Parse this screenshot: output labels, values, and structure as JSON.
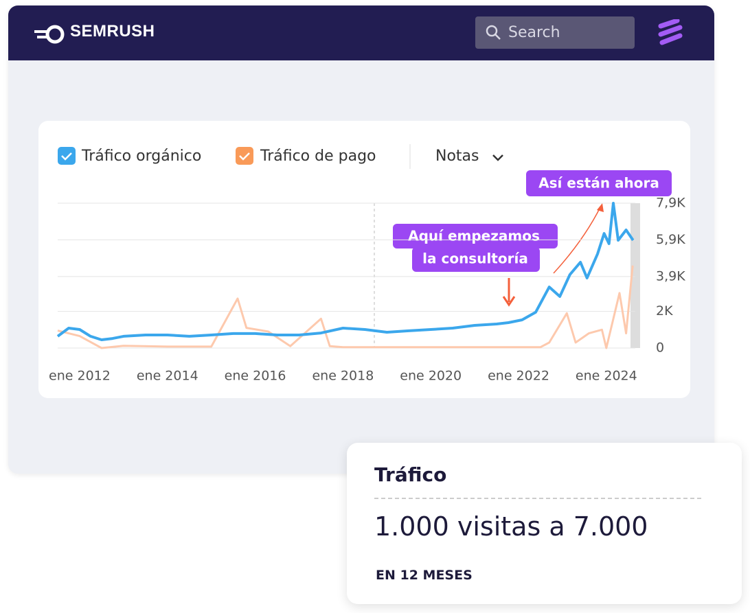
{
  "header": {
    "brand": "SEMRUSH",
    "search": "Search"
  },
  "chart_data": {
    "type": "line",
    "legend": [
      "Tráfico orgánico",
      "Tráfico de pago"
    ],
    "notes": "Notas",
    "annotations": [
      "Así están ahora",
      "Aquí empezamos",
      "la consultoría"
    ],
    "xlim": [
      2011.5,
      2024.66
    ],
    "xticks": [
      {
        "value": 2012,
        "label": "ene 2012"
      },
      {
        "value": 2014,
        "label": "ene 2014"
      },
      {
        "value": 2016,
        "label": "ene 2016"
      },
      {
        "value": 2018,
        "label": "ene 2018"
      },
      {
        "value": 2020,
        "label": "ene 2020"
      },
      {
        "value": 2022,
        "label": "ene 2022"
      },
      {
        "value": 2024,
        "label": "ene 2024"
      }
    ],
    "ylim": [
      0,
      7900
    ],
    "yticks": [
      0,
      {
        "value": 2000,
        "label": "2K"
      },
      {
        "value": 3900,
        "label": "3,9K"
      },
      {
        "value": 5900,
        "label": "5,9K"
      },
      {
        "value": 7900,
        "label": "7,9K"
      }
    ],
    "grid": true,
    "series": [
      {
        "name": "Tráfico orgánico",
        "color": "#3ba7ec",
        "x": [
          2011.5,
          2011.75,
          2012,
          2012.25,
          2012.5,
          2012.75,
          2013,
          2013.5,
          2014,
          2014.5,
          2015,
          2015.5,
          2016,
          2016.5,
          2017,
          2017.5,
          2018,
          2018.5,
          2019,
          2019.5,
          2020,
          2020.5,
          2021,
          2021.5,
          2021.77,
          2022.08,
          2022.39,
          2022.7,
          2022.94,
          2023.17,
          2023.41,
          2023.56,
          2023.8,
          2023.95,
          2024.06,
          2024.16,
          2024.27,
          2024.45,
          2024.61
        ],
        "values": [
          640,
          1085,
          1010,
          640,
          450,
          520,
          640,
          710,
          710,
          640,
          710,
          790,
          790,
          710,
          710,
          820,
          1085,
          1010,
          860,
          940,
          1010,
          1085,
          1235,
          1310,
          1385,
          1535,
          1950,
          3330,
          2810,
          4005,
          4680,
          3820,
          5130,
          6250,
          5690,
          7900,
          5880,
          6440,
          5880
        ]
      },
      {
        "name": "Tráfico de pago",
        "color": "#fdc9ad",
        "x": [
          2011.5,
          2012,
          2012.5,
          2013,
          2014,
          2015,
          2015.6,
          2015.8,
          2016.3,
          2016.8,
          2017.5,
          2017.7,
          2018,
          2019,
          2020,
          2021,
          2022,
          2022.5,
          2022.7,
          2023.1,
          2023.3,
          2023.6,
          2023.9,
          2024,
          2024.3,
          2024.45,
          2024.6
        ],
        "values": [
          950,
          650,
          0,
          120,
          80,
          80,
          2700,
          1100,
          900,
          100,
          1600,
          100,
          50,
          50,
          50,
          50,
          50,
          50,
          300,
          1900,
          300,
          800,
          1000,
          0,
          3000,
          800,
          4500
        ]
      }
    ]
  },
  "card": {
    "title": "Tráfico",
    "text": "1.000 visitas a 7.000",
    "footnote": "EN 12 MESES"
  }
}
